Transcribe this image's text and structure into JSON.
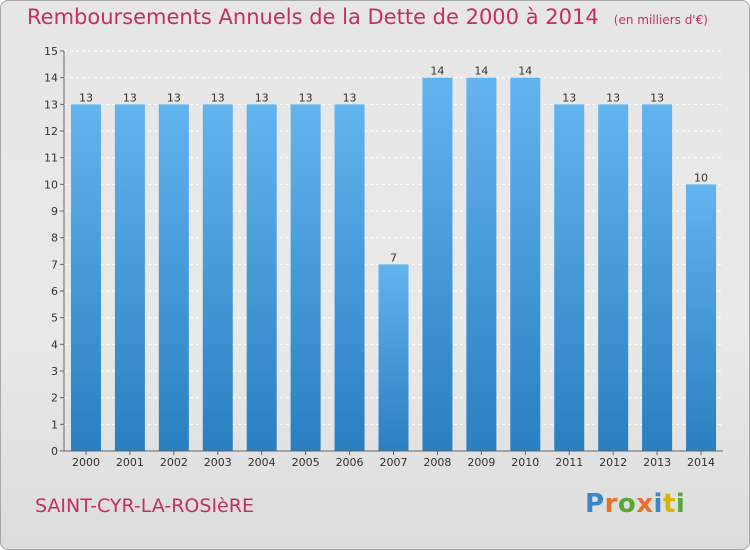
{
  "header": {
    "title": "Remboursements Annuels de la Dette de 2000 à 2014",
    "subtitle": "(en milliers d'€)"
  },
  "footer": {
    "town": "SAINT-CYR-LA-ROSIèRE",
    "brand": "Proxiti",
    "brand_colors": [
      "#3a86c8",
      "#e8702a",
      "#5aa832",
      "#e8702a",
      "#3a86c8",
      "#d8b400",
      "#5aa832"
    ]
  },
  "colors": {
    "bar_top": "#62b4ef",
    "bar_bottom": "#2a7fc0",
    "text": "#333333",
    "title": "#c4305a"
  },
  "chart_data": {
    "type": "bar",
    "title": "Remboursements Annuels de la Dette de 2000 à 2014",
    "subtitle": "(en milliers d'€)",
    "categories": [
      "2000",
      "2001",
      "2002",
      "2003",
      "2004",
      "2005",
      "2006",
      "2007",
      "2008",
      "2009",
      "2010",
      "2011",
      "2012",
      "2013",
      "2014"
    ],
    "values": [
      13,
      13,
      13,
      13,
      13,
      13,
      13,
      7,
      14,
      14,
      14,
      13,
      13,
      13,
      10
    ],
    "ylim": [
      0,
      15
    ],
    "yticks": [
      0,
      1,
      2,
      3,
      4,
      5,
      6,
      7,
      8,
      9,
      10,
      11,
      12,
      13,
      14,
      15
    ],
    "grid": true,
    "data_labels": true
  }
}
